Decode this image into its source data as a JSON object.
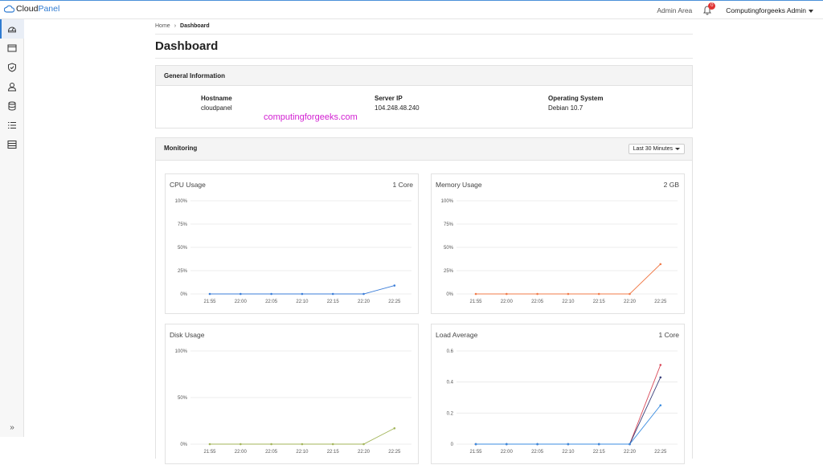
{
  "app": {
    "brand_part1": "Cloud",
    "brand_part2": "Panel"
  },
  "topbar": {
    "admin_area": "Admin Area",
    "notification_count": "0",
    "user_name": "Computingforgeeks Admin"
  },
  "sidebar": {
    "items": [
      {
        "name": "dashboard",
        "icon": "gauge-icon",
        "active": true
      },
      {
        "name": "sites",
        "icon": "browser-window-icon"
      },
      {
        "name": "security",
        "icon": "shield-icon"
      },
      {
        "name": "users",
        "icon": "user-icon"
      },
      {
        "name": "databases",
        "icon": "database-icon"
      },
      {
        "name": "events",
        "icon": "list-icon"
      },
      {
        "name": "services",
        "icon": "server-icon"
      }
    ],
    "collapse_glyph": "»"
  },
  "breadcrumb": {
    "home": "Home",
    "sep": "›",
    "current": "Dashboard"
  },
  "page_title": "Dashboard",
  "general_info": {
    "title": "General Information",
    "hostname_label": "Hostname",
    "hostname": "cloudpanel",
    "ip_label": "Server IP",
    "ip": "104.248.48.240",
    "os_label": "Operating System",
    "os": "Debian 10.7",
    "watermark": "computingforgeeks.com"
  },
  "monitoring": {
    "title": "Monitoring",
    "range": "Last 30 Minutes"
  },
  "charts": [
    {
      "title": "CPU Usage",
      "meta": "1 Core",
      "chart_data": {
        "type": "line",
        "x": [
          "21:55",
          "22:00",
          "22:05",
          "22:10",
          "22:15",
          "22:20",
          "22:25"
        ],
        "yticks": [
          "100%",
          "75%",
          "50%",
          "25%",
          "0%"
        ],
        "ylim": [
          0,
          100
        ],
        "series": [
          {
            "color": "#3b7dd8",
            "values": [
              0,
              0,
              0,
              0,
              0,
              0,
              9
            ]
          }
        ]
      }
    },
    {
      "title": "Memory Usage",
      "meta": "2 GB",
      "chart_data": {
        "type": "line",
        "x": [
          "21:55",
          "22:00",
          "22:05",
          "22:10",
          "22:15",
          "22:20",
          "22:25"
        ],
        "yticks": [
          "100%",
          "75%",
          "50%",
          "25%",
          "0%"
        ],
        "ylim": [
          0,
          100
        ],
        "series": [
          {
            "color": "#f07b4a",
            "values": [
              0,
              0,
              0,
              0,
              0,
              0,
              32
            ]
          }
        ]
      }
    },
    {
      "title": "Disk Usage",
      "meta": "",
      "chart_data": {
        "type": "line",
        "x": [
          "21:55",
          "22:00",
          "22:05",
          "22:10",
          "22:15",
          "22:20",
          "22:25"
        ],
        "yticks": [
          "100%",
          "50%",
          "0%"
        ],
        "ylim": [
          0,
          100
        ],
        "series": [
          {
            "color": "#a3b55a",
            "values": [
              0,
              0,
              0,
              0,
              0,
              0,
              17
            ]
          }
        ]
      }
    },
    {
      "title": "Load Average",
      "meta": "1 Core",
      "chart_data": {
        "type": "line",
        "x": [
          "21:55",
          "22:00",
          "22:05",
          "22:10",
          "22:15",
          "22:20",
          "22:25"
        ],
        "yticks": [
          "0.6",
          "0.4",
          "0.2",
          "0"
        ],
        "ylim": [
          0,
          0.6
        ],
        "series": [
          {
            "color": "#d94a5a",
            "values": [
              0,
              0,
              0,
              0,
              0,
              0,
              0.51
            ]
          },
          {
            "color": "#3a3f7a",
            "values": [
              0,
              0,
              0,
              0,
              0,
              0,
              0.43
            ]
          },
          {
            "color": "#3b8de0",
            "values": [
              0,
              0,
              0,
              0,
              0,
              0,
              0.25
            ]
          }
        ]
      }
    }
  ]
}
